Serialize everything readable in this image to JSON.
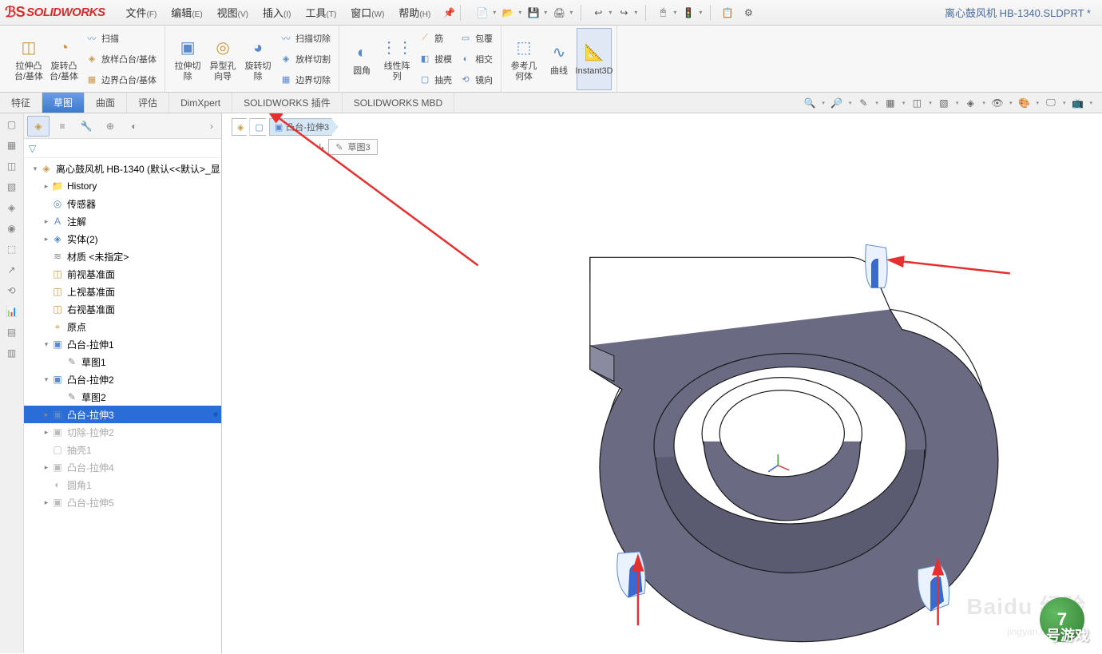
{
  "app": {
    "name": "SOLIDWORKS",
    "doc_title": "离心鼓风机 HB-1340.SLDPRT *"
  },
  "menus": [
    {
      "label": "文件",
      "key": "(F)"
    },
    {
      "label": "编辑",
      "key": "(E)"
    },
    {
      "label": "视图",
      "key": "(V)"
    },
    {
      "label": "插入",
      "key": "(I)"
    },
    {
      "label": "工具",
      "key": "(T)"
    },
    {
      "label": "窗口",
      "key": "(W)"
    },
    {
      "label": "帮助",
      "key": "(H)"
    }
  ],
  "qat_icons": [
    "📄",
    "📂",
    "💾",
    "🖨",
    "↩",
    "↪",
    "🖱",
    "🚦",
    "📋",
    "⚙"
  ],
  "ribbon": {
    "large": [
      {
        "icon": "◫",
        "color": "#c99a4a",
        "label": "拉伸凸\n台/基体"
      },
      {
        "icon": "◔",
        "color": "#c99a4a",
        "label": "旋转凸\n台/基体"
      }
    ],
    "col1": [
      {
        "icon": "〰",
        "color": "#5a8acc",
        "label": "扫描"
      },
      {
        "icon": "◈",
        "color": "#c99a4a",
        "label": "放样凸台/基体"
      },
      {
        "icon": "▦",
        "color": "#c99a4a",
        "label": "边界凸台/基体"
      }
    ],
    "large2": [
      {
        "icon": "▣",
        "color": "#5a8acc",
        "label": "拉伸切\n除"
      },
      {
        "icon": "◎",
        "color": "#c99a4a",
        "label": "异型孔\n向导"
      },
      {
        "icon": "◕",
        "color": "#5a8acc",
        "label": "旋转切\n除"
      }
    ],
    "col2": [
      {
        "icon": "〰",
        "color": "#5a8acc",
        "label": "扫描切除"
      },
      {
        "icon": "◈",
        "color": "#5a8acc",
        "label": "放样切割"
      },
      {
        "icon": "▦",
        "color": "#5a8acc",
        "label": "边界切除"
      }
    ],
    "large3": [
      {
        "icon": "◐",
        "color": "#5a8acc",
        "label": "圆角"
      },
      {
        "icon": "⋮⋮",
        "color": "#5a8acc",
        "label": "线性阵\n列"
      }
    ],
    "col3": [
      {
        "icon": "⟋",
        "color": "#c99a4a",
        "label": "筋"
      },
      {
        "icon": "◧",
        "color": "#5a8acc",
        "label": "拔模"
      },
      {
        "icon": "▢",
        "color": "#5a8acc",
        "label": "抽壳"
      }
    ],
    "col4": [
      {
        "icon": "▭",
        "color": "#5a8acc",
        "label": "包覆"
      },
      {
        "icon": "◐",
        "color": "#5a8acc",
        "label": "相交"
      },
      {
        "icon": "⟲",
        "color": "#5a8acc",
        "label": "镜向"
      }
    ],
    "large4": [
      {
        "icon": "⬚",
        "color": "#5a8acc",
        "label": "参考几\n何体"
      },
      {
        "icon": "∿",
        "color": "#5a8acc",
        "label": "曲线"
      },
      {
        "icon": "📐",
        "color": "#c99a4a",
        "label": "Instant3D",
        "active": true
      }
    ]
  },
  "tabs": [
    "特征",
    "草图",
    "曲面",
    "评估",
    "DimXpert",
    "SOLIDWORKS 插件",
    "SOLIDWORKS MBD"
  ],
  "active_tab_index": 1,
  "view_icons": [
    "🔍",
    "🔎",
    "✎",
    "▦",
    "◫",
    "▧",
    "◈",
    "👁",
    "🎨",
    "🖵",
    "📺"
  ],
  "side_rail_icons": [
    "▢",
    "▦",
    "◫",
    "▧",
    "◈",
    "◉",
    "⬚",
    "↗",
    "⟲",
    "📊",
    "▤",
    "▥"
  ],
  "panel_tabs_icons": [
    "◈",
    "≡",
    "🔧",
    "⊕",
    "◐"
  ],
  "breadcrumb": [
    {
      "icon": "◈",
      "color": "#c99a4a",
      "label": ""
    },
    {
      "icon": "▢",
      "color": "#5a8acc",
      "label": ""
    },
    {
      "icon": "▣",
      "color": "#5a8acc",
      "label": "凸台-拉伸3"
    }
  ],
  "bc_sub_label": "草图3",
  "tree": {
    "root": "离心鼓风机 HB-1340  (默认<<默认>_显",
    "items": [
      {
        "indent": 1,
        "caret": "▸",
        "icon": "📁",
        "color": "#5a8acc",
        "label": "History"
      },
      {
        "indent": 1,
        "caret": "",
        "icon": "◎",
        "color": "#5a8acc",
        "label": "传感器"
      },
      {
        "indent": 1,
        "caret": "▸",
        "icon": "A",
        "color": "#5a8acc",
        "label": "注解"
      },
      {
        "indent": 1,
        "caret": "▸",
        "icon": "◈",
        "color": "#5a8acc",
        "label": "实体(2)"
      },
      {
        "indent": 1,
        "caret": "",
        "icon": "≋",
        "color": "#888",
        "label": "材质 <未指定>"
      },
      {
        "indent": 1,
        "caret": "",
        "icon": "◫",
        "color": "#c99a4a",
        "label": "前视基准面"
      },
      {
        "indent": 1,
        "caret": "",
        "icon": "◫",
        "color": "#c99a4a",
        "label": "上视基准面"
      },
      {
        "indent": 1,
        "caret": "",
        "icon": "◫",
        "color": "#c99a4a",
        "label": "右视基准面"
      },
      {
        "indent": 1,
        "caret": "",
        "icon": "⌖",
        "color": "#c99a4a",
        "label": "原点"
      },
      {
        "indent": 1,
        "caret": "▾",
        "icon": "▣",
        "color": "#5a8acc",
        "label": "凸台-拉伸1"
      },
      {
        "indent": 2,
        "caret": "",
        "icon": "✎",
        "color": "#888",
        "label": "草图1"
      },
      {
        "indent": 1,
        "caret": "▾",
        "icon": "▣",
        "color": "#5a8acc",
        "label": "凸台-拉伸2"
      },
      {
        "indent": 2,
        "caret": "",
        "icon": "✎",
        "color": "#888",
        "label": "草图2"
      },
      {
        "indent": 1,
        "caret": "▸",
        "icon": "▣",
        "color": "#5a8acc",
        "label": "凸台-拉伸3",
        "selected": true
      },
      {
        "indent": 1,
        "caret": "▸",
        "icon": "▣",
        "color": "#bbb",
        "label": "切除-拉伸2",
        "suppressed": true
      },
      {
        "indent": 1,
        "caret": "",
        "icon": "▢",
        "color": "#bbb",
        "label": "抽壳1",
        "suppressed": true
      },
      {
        "indent": 1,
        "caret": "▸",
        "icon": "▣",
        "color": "#bbb",
        "label": "凸台-拉伸4",
        "suppressed": true
      },
      {
        "indent": 1,
        "caret": "",
        "icon": "◐",
        "color": "#bbb",
        "label": "圆角1",
        "suppressed": true
      },
      {
        "indent": 1,
        "caret": "▸",
        "icon": "▣",
        "color": "#bbb",
        "label": "凸台-拉伸5",
        "suppressed": true
      }
    ]
  },
  "model": {
    "stroke": "#1a1a1a",
    "fill_dark": "#5a5a70",
    "fill_mid": "#8a8aa0",
    "fill_light": "#c0c0d0",
    "highlight": "#3a6ad0",
    "highlight_light": "#9ac0f0"
  },
  "arrows": {
    "color": "#e63030"
  },
  "watermark_main": "Baidu 经验",
  "watermark_sub": "jingyan.baidu.com"
}
